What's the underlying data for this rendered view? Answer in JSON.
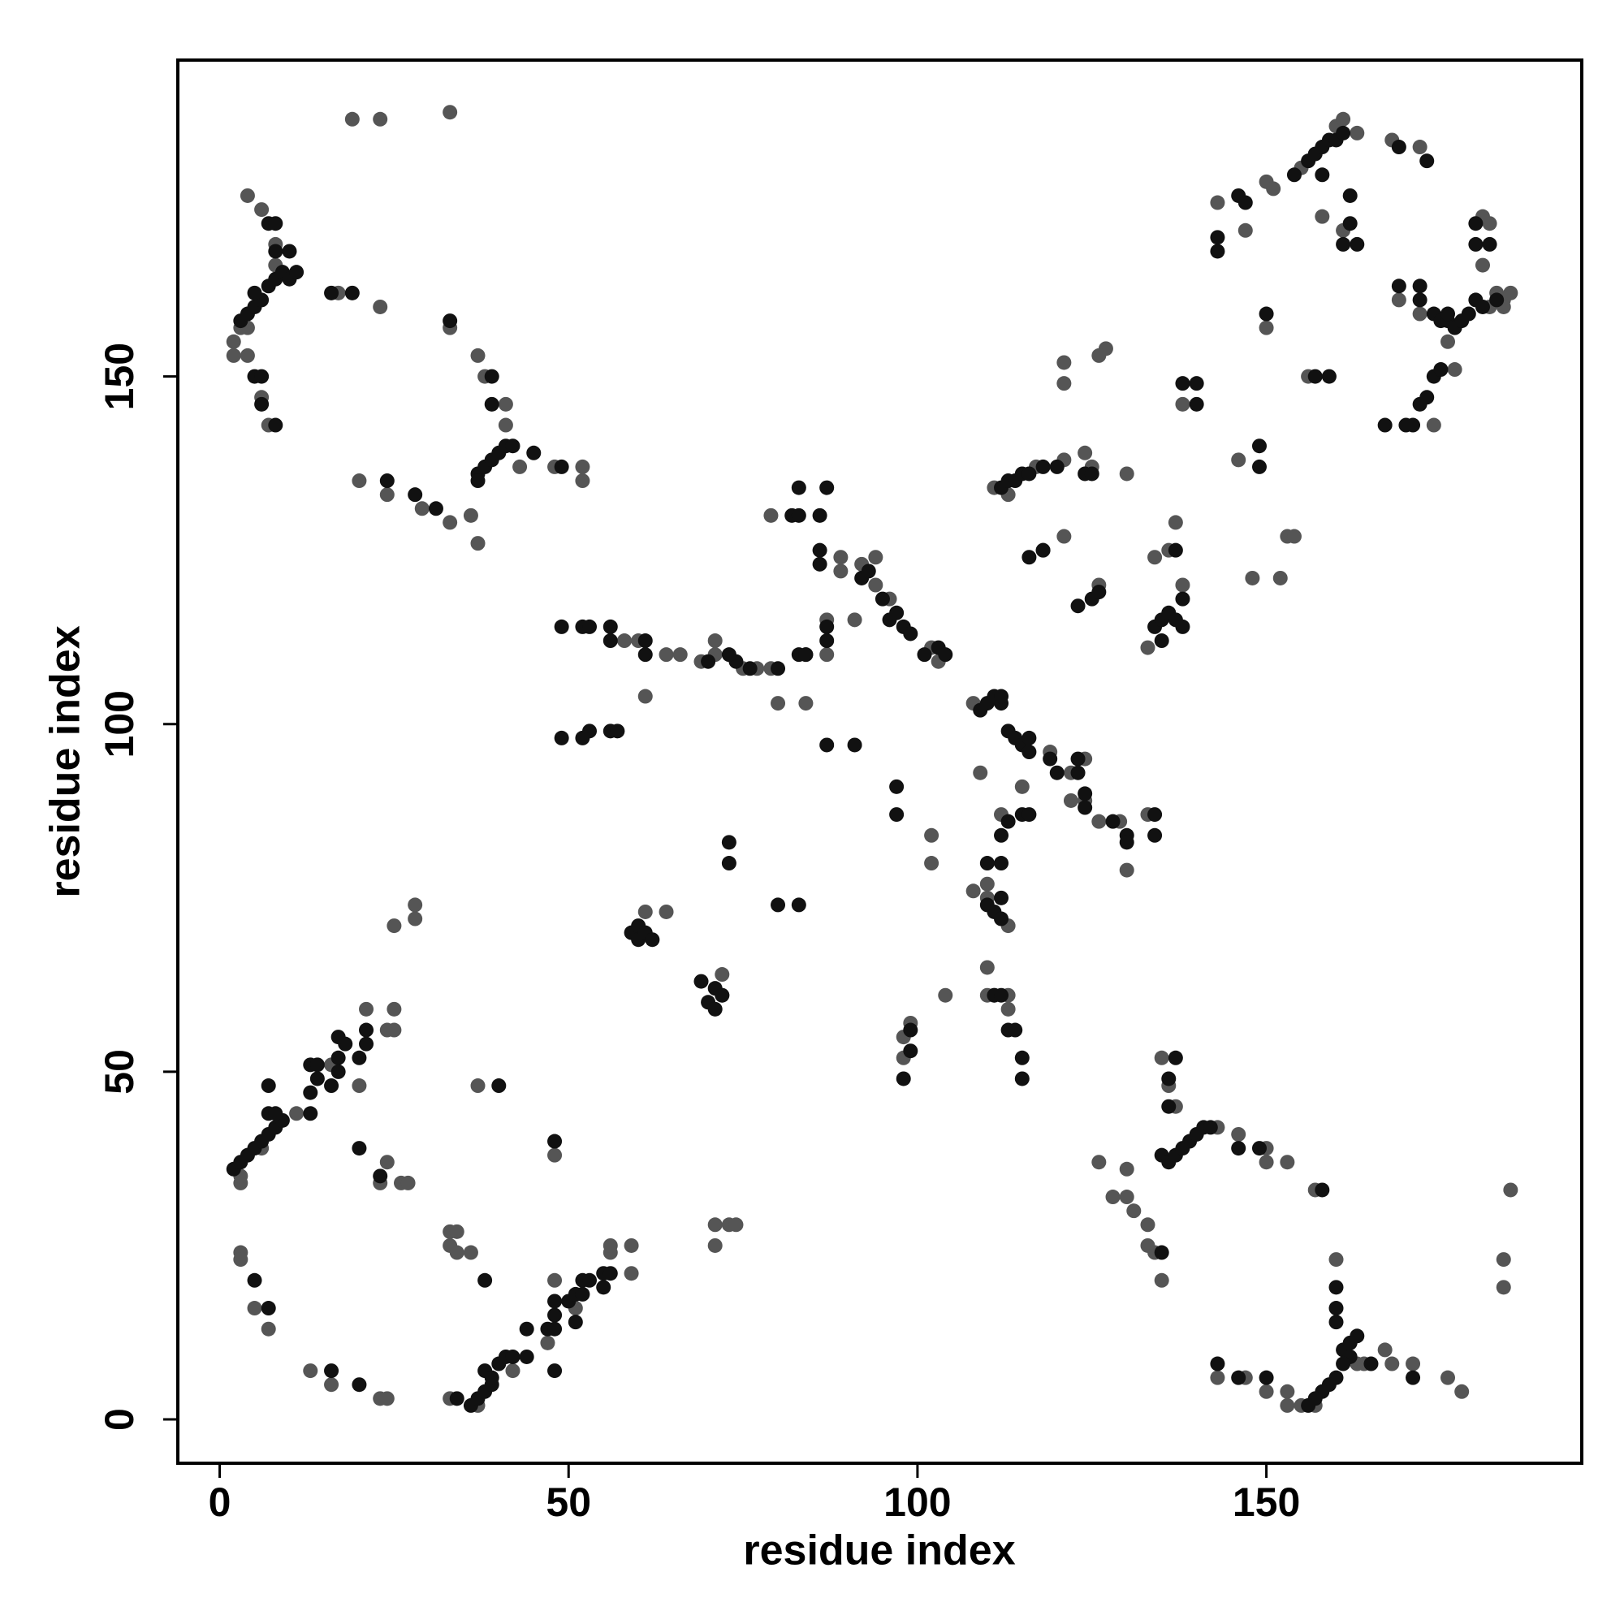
{
  "chart_data": {
    "type": "scatter",
    "xlabel": "residue index",
    "ylabel": "residue index",
    "xlim": [
      -6,
      195.2
    ],
    "ylim": [
      -6.3,
      195.5
    ],
    "xticks": [
      0,
      50,
      100,
      150
    ],
    "yticks": [
      0,
      50,
      100,
      150
    ],
    "series": [
      {
        "color": "#555555",
        "x": [
          2,
          2,
          4,
          6,
          4,
          6,
          7,
          8,
          8,
          17,
          23,
          3,
          4,
          19,
          23,
          33,
          33,
          37,
          38,
          41,
          41,
          36,
          37,
          20,
          24,
          29,
          33,
          48,
          52,
          52,
          43,
          3,
          3,
          6,
          11,
          16,
          21,
          25,
          24,
          25,
          20,
          24,
          26,
          27,
          25,
          28,
          28,
          23,
          3,
          3,
          5,
          7,
          13,
          16,
          23,
          24,
          33,
          33,
          34,
          33,
          34,
          36,
          37,
          37,
          42,
          47,
          48,
          51,
          56,
          56,
          59,
          59,
          48,
          58,
          60,
          61,
          64,
          64,
          61,
          71,
          71,
          69,
          72,
          72,
          71,
          73,
          74,
          71,
          79,
          79,
          80,
          84,
          84,
          89,
          89,
          91,
          92,
          94,
          94,
          96,
          87,
          87,
          102,
          103,
          102,
          102,
          104,
          98,
          99,
          98,
          77,
          75,
          66,
          108,
          109,
          115,
          119,
          122,
          124,
          122,
          124,
          126,
          110,
          111,
          113,
          113,
          113,
          110,
          110,
          110,
          112,
          111,
          113,
          118,
          121,
          121,
          124,
          125,
          126,
          127,
          126,
          121,
          121,
          130,
          130,
          129,
          133,
          133,
          134,
          136,
          137,
          138,
          138,
          108,
          117,
          136,
          137,
          135,
          143,
          146,
          150,
          150,
          153,
          126,
          130,
          128,
          130,
          131,
          133,
          133,
          134,
          135,
          157,
          160,
          163,
          164,
          167,
          168,
          171,
          176,
          178,
          143,
          147,
          150,
          153,
          153,
          155,
          157,
          185,
          184,
          184,
          143,
          146,
          147,
          148,
          150,
          150,
          151,
          152,
          153,
          154,
          155,
          156,
          158,
          160,
          161,
          163,
          168,
          172,
          169,
          172,
          176,
          177,
          174,
          181,
          182,
          181,
          183,
          184,
          185,
          184,
          182,
          161
        ],
        "values": [
          153,
          155,
          176,
          174,
          153,
          147,
          143,
          169,
          166,
          162,
          160,
          157,
          157,
          187,
          187,
          188,
          157,
          153,
          150,
          146,
          143,
          130,
          126,
          135,
          133,
          131,
          129,
          137,
          137,
          135,
          137,
          34,
          35,
          39,
          44,
          51,
          59,
          59,
          56,
          56,
          48,
          37,
          34,
          34,
          71,
          72,
          74,
          34,
          24,
          23,
          16,
          13,
          7,
          5,
          3,
          3,
          3,
          27,
          27,
          25,
          24,
          24,
          48,
          2,
          7,
          11,
          20,
          16,
          24,
          25,
          21,
          25,
          38,
          112,
          112,
          73,
          73,
          110,
          104,
          110,
          112,
          109,
          64,
          61,
          28,
          28,
          28,
          25,
          130,
          108,
          103,
          103,
          110,
          122,
          124,
          115,
          123,
          124,
          120,
          118,
          110,
          115,
          111,
          109,
          84,
          80,
          61,
          52,
          57,
          55,
          108,
          108,
          110,
          103,
          93,
          91,
          96,
          93,
          95,
          89,
          89,
          86,
          65,
          61,
          59,
          61,
          71,
          77,
          75,
          61,
          87,
          134,
          133,
          125,
          138,
          127,
          139,
          137,
          120,
          154,
          153,
          152,
          149,
          136,
          79,
          86,
          87,
          111,
          124,
          125,
          129,
          120,
          146,
          76,
          137,
          48,
          45,
          52,
          42,
          41,
          39,
          37,
          37,
          37,
          36,
          32,
          32,
          30,
          28,
          25,
          24,
          20,
          33,
          23,
          8,
          8,
          10,
          8,
          8,
          6,
          4,
          6,
          6,
          4,
          4,
          2,
          2,
          2,
          33,
          23,
          19,
          175,
          138,
          171,
          121,
          157,
          178,
          177,
          121,
          127,
          127,
          180,
          150,
          173,
          186,
          187,
          185,
          184,
          183,
          161,
          159,
          155,
          151,
          143,
          166,
          172,
          173,
          162,
          161,
          162,
          160,
          160,
          171
        ]
      },
      {
        "color": "#111111",
        "x": [
          3,
          4,
          5,
          6,
          5,
          7,
          8,
          9,
          10,
          11,
          5,
          6,
          6,
          8,
          7,
          8,
          8,
          10,
          16,
          19,
          33,
          37,
          38,
          39,
          40,
          41,
          42,
          39,
          39,
          45,
          49,
          24,
          28,
          31,
          37,
          2,
          3,
          4,
          5,
          6,
          7,
          8,
          9,
          7,
          8,
          13,
          13,
          14,
          13,
          14,
          16,
          17,
          17,
          18,
          17,
          20,
          21,
          21,
          20,
          23,
          7,
          5,
          7,
          16,
          20,
          34,
          38,
          40,
          36,
          37,
          38,
          39,
          38,
          39,
          40,
          41,
          42,
          44,
          44,
          47,
          48,
          48,
          48,
          50,
          51,
          52,
          52,
          53,
          55,
          55,
          56,
          48,
          51,
          48,
          49,
          52,
          53,
          56,
          56,
          49,
          52,
          53,
          56,
          57,
          59,
          60,
          60,
          61,
          62,
          61,
          61,
          70,
          71,
          69,
          71,
          72,
          73,
          73,
          80,
          83,
          80,
          83,
          84,
          82,
          83,
          83,
          86,
          87,
          86,
          86,
          87,
          87,
          87,
          91,
          92,
          93,
          95,
          96,
          97,
          98,
          99,
          101,
          103,
          104,
          97,
          97,
          99,
          99,
          98,
          74,
          73,
          76,
          70,
          109,
          110,
          111,
          112,
          113,
          114,
          115,
          116,
          116,
          119,
          120,
          123,
          123,
          124,
          124,
          110,
          110,
          111,
          112,
          112,
          112,
          112,
          115,
          116,
          113,
          113,
          114,
          115,
          115,
          111,
          112,
          112,
          116,
          118,
          112,
          113,
          114,
          115,
          116,
          120,
          118,
          124,
          125,
          123,
          125,
          126,
          128,
          130,
          130,
          134,
          134,
          134,
          135,
          136,
          137,
          138,
          135,
          137,
          138,
          138,
          140,
          140,
          135,
          136,
          137,
          138,
          139,
          140,
          141,
          142,
          136,
          136,
          137,
          146,
          149,
          135,
          158,
          160,
          160,
          160,
          161,
          162,
          163,
          162,
          161,
          160,
          159,
          158,
          157,
          156,
          165,
          171,
          143,
          146,
          150,
          143,
          143,
          146,
          147,
          149,
          149,
          150,
          154,
          156,
          157,
          158,
          159,
          158,
          160,
          161,
          162,
          162,
          161,
          163,
          157,
          159,
          169,
          173,
          169,
          172,
          172,
          174,
          175,
          176,
          177,
          178,
          179,
          180,
          181,
          180,
          180,
          182,
          183,
          167,
          170,
          171,
          172,
          173,
          174,
          175,
          176
        ],
        "values": [
          158,
          159,
          160,
          161,
          162,
          163,
          164,
          165,
          164,
          165,
          150,
          150,
          146,
          143,
          172,
          172,
          168,
          168,
          162,
          162,
          158,
          136,
          137,
          138,
          139,
          140,
          140,
          146,
          150,
          139,
          137,
          135,
          133,
          131,
          135,
          36,
          37,
          38,
          39,
          40,
          41,
          42,
          43,
          44,
          44,
          44,
          47,
          49,
          51,
          51,
          48,
          50,
          52,
          54,
          55,
          52,
          54,
          56,
          39,
          35,
          48,
          20,
          16,
          7,
          5,
          3,
          20,
          48,
          2,
          3,
          4,
          5,
          7,
          6,
          8,
          9,
          9,
          9,
          13,
          13,
          13,
          15,
          17,
          17,
          18,
          18,
          20,
          20,
          19,
          21,
          21,
          7,
          14,
          40,
          114,
          114,
          114,
          114,
          112,
          98,
          98,
          99,
          99,
          99,
          70,
          69,
          71,
          70,
          69,
          112,
          110,
          60,
          59,
          63,
          62,
          61,
          83,
          80,
          74,
          74,
          108,
          110,
          110,
          130,
          130,
          134,
          130,
          134,
          125,
          123,
          114,
          112,
          97,
          97,
          121,
          122,
          118,
          115,
          116,
          114,
          113,
          110,
          111,
          110,
          91,
          87,
          56,
          53,
          49,
          109,
          110,
          108,
          109,
          102,
          103,
          104,
          103,
          99,
          98,
          97,
          96,
          98,
          95,
          93,
          95,
          93,
          88,
          90,
          80,
          74,
          73,
          72,
          75,
          80,
          84,
          87,
          87,
          86,
          56,
          56,
          52,
          49,
          61,
          61,
          104,
          124,
          125,
          134,
          135,
          135,
          136,
          136,
          137,
          137,
          136,
          136,
          117,
          118,
          119,
          86,
          84,
          83,
          84,
          87,
          114,
          115,
          116,
          115,
          114,
          112,
          125,
          118,
          149,
          146,
          149,
          38,
          37,
          38,
          39,
          40,
          41,
          42,
          42,
          45,
          49,
          52,
          39,
          39,
          24,
          33,
          19,
          16,
          14,
          10,
          11,
          12,
          9,
          8,
          6,
          5,
          4,
          3,
          2,
          8,
          6,
          8,
          6,
          6,
          170,
          168,
          176,
          175,
          140,
          137,
          159,
          179,
          181,
          182,
          183,
          184,
          179,
          184,
          185,
          176,
          172,
          169,
          169,
          150,
          150,
          183,
          181,
          163,
          163,
          161,
          159,
          158,
          158,
          157,
          158,
          159,
          161,
          160,
          169,
          172,
          169,
          161,
          143,
          143,
          143,
          146,
          147,
          150,
          151,
          159
        ]
      }
    ]
  }
}
